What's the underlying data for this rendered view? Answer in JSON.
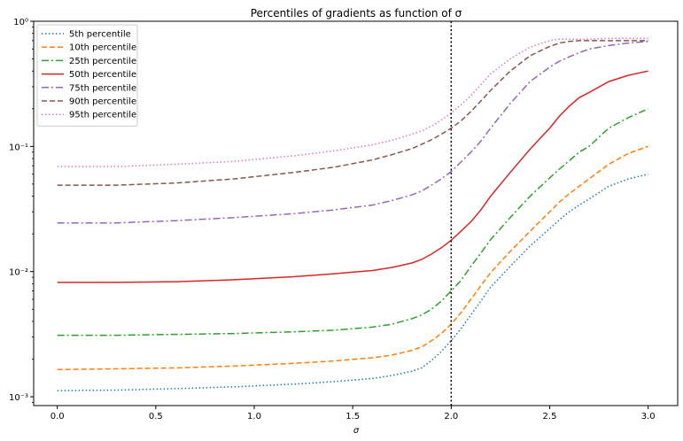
{
  "chart_data": {
    "type": "line",
    "title": "Percentiles of gradients as function of σ",
    "xlabel": "σ",
    "ylabel": "",
    "xlim": [
      -0.12,
      3.15
    ],
    "ylim": [
      0.00085,
      1.0
    ],
    "yscale": "log",
    "xticks": [
      0.0,
      0.5,
      1.0,
      1.5,
      2.0,
      2.5,
      3.0
    ],
    "xtick_labels": [
      "0.0",
      "0.5",
      "1.0",
      "1.5",
      "2.0",
      "2.5",
      "3.0"
    ],
    "yticks": [
      0.001,
      0.01,
      0.1,
      1.0
    ],
    "ytick_labels": [
      "10⁻³",
      "10⁻²",
      "10⁻¹",
      "10⁰"
    ],
    "vline": {
      "x": 2.0,
      "color": "#000000",
      "style": "dotted"
    },
    "legend_position": "upper-left",
    "grid": false,
    "x": [
      0.0,
      0.3,
      0.6,
      0.9,
      1.2,
      1.4,
      1.6,
      1.7,
      1.8,
      1.85,
      1.9,
      1.95,
      2.0,
      2.05,
      2.1,
      2.15,
      2.2,
      2.3,
      2.4,
      2.5,
      2.55,
      2.6,
      2.65,
      2.7,
      2.8,
      2.9,
      3.0
    ],
    "series": [
      {
        "name": "5th percentile",
        "color": "#1f77b4",
        "dash": "1.5,2.5",
        "values": [
          0.00112,
          0.00113,
          0.00116,
          0.0012,
          0.00126,
          0.00132,
          0.0014,
          0.00148,
          0.0016,
          0.0017,
          0.00195,
          0.0023,
          0.0028,
          0.0035,
          0.0045,
          0.0058,
          0.0075,
          0.011,
          0.016,
          0.022,
          0.026,
          0.03,
          0.034,
          0.038,
          0.048,
          0.055,
          0.06
        ]
      },
      {
        "name": "10th percentile",
        "color": "#ff7f0e",
        "dash": "6,3",
        "values": [
          0.00165,
          0.00167,
          0.0017,
          0.00176,
          0.00185,
          0.00193,
          0.00205,
          0.00215,
          0.00235,
          0.0025,
          0.0028,
          0.0032,
          0.0038,
          0.0047,
          0.006,
          0.0077,
          0.0098,
          0.0145,
          0.021,
          0.03,
          0.036,
          0.042,
          0.048,
          0.055,
          0.072,
          0.088,
          0.1
        ]
      },
      {
        "name": "25th percentile",
        "color": "#2ca02c",
        "dash": "8,3,2,3",
        "values": [
          0.0031,
          0.0031,
          0.00315,
          0.0032,
          0.0033,
          0.0034,
          0.0036,
          0.0038,
          0.0042,
          0.0045,
          0.005,
          0.0058,
          0.007,
          0.0085,
          0.011,
          0.014,
          0.018,
          0.027,
          0.04,
          0.056,
          0.066,
          0.077,
          0.09,
          0.1,
          0.14,
          0.17,
          0.2
        ]
      },
      {
        "name": "50th percentile",
        "color": "#d62728",
        "dash": "",
        "values": [
          0.0082,
          0.0082,
          0.0083,
          0.0086,
          0.0091,
          0.0096,
          0.0102,
          0.0108,
          0.0117,
          0.0125,
          0.0138,
          0.0155,
          0.0178,
          0.021,
          0.025,
          0.031,
          0.04,
          0.062,
          0.095,
          0.14,
          0.175,
          0.21,
          0.245,
          0.27,
          0.33,
          0.37,
          0.4
        ]
      },
      {
        "name": "75th percentile",
        "color": "#9467bd",
        "dash": "8,3,2,3",
        "values": [
          0.0245,
          0.0245,
          0.0255,
          0.027,
          0.029,
          0.031,
          0.034,
          0.037,
          0.041,
          0.044,
          0.049,
          0.055,
          0.063,
          0.075,
          0.09,
          0.11,
          0.14,
          0.22,
          0.33,
          0.43,
          0.48,
          0.52,
          0.56,
          0.6,
          0.64,
          0.67,
          0.69
        ]
      },
      {
        "name": "90th percentile",
        "color": "#8c564b",
        "dash": "6,3",
        "values": [
          0.049,
          0.049,
          0.051,
          0.055,
          0.062,
          0.068,
          0.078,
          0.086,
          0.096,
          0.104,
          0.113,
          0.125,
          0.14,
          0.16,
          0.19,
          0.23,
          0.28,
          0.4,
          0.53,
          0.63,
          0.67,
          0.69,
          0.7,
          0.7,
          0.7,
          0.7,
          0.7
        ]
      },
      {
        "name": "95th percentile",
        "color": "#e377c2",
        "dash": "1.5,2.5",
        "values": [
          0.069,
          0.069,
          0.072,
          0.076,
          0.084,
          0.092,
          0.103,
          0.112,
          0.125,
          0.133,
          0.145,
          0.162,
          0.185,
          0.215,
          0.255,
          0.31,
          0.38,
          0.5,
          0.62,
          0.7,
          0.72,
          0.72,
          0.72,
          0.72,
          0.73,
          0.73,
          0.73
        ]
      }
    ]
  }
}
